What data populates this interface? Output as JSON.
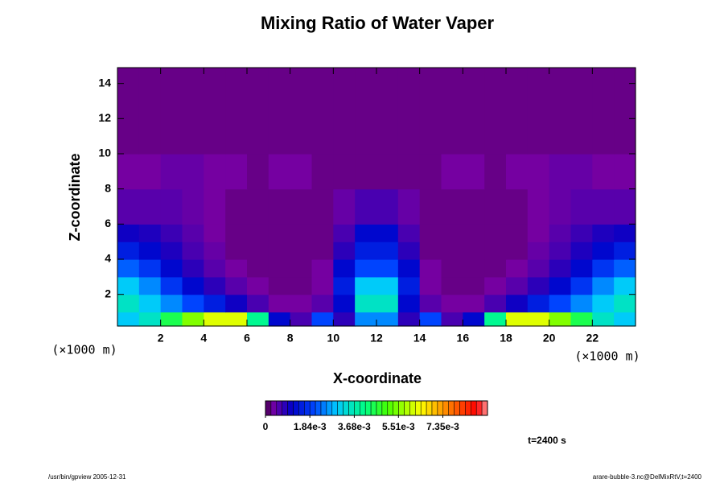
{
  "chart_data": {
    "type": "heatmap",
    "title": "Mixing Ratio of Water Vaper",
    "xlabel": "X-coordinate",
    "ylabel": "Z-coordinate",
    "x_unit": "(×1000 m)",
    "time_label": "t=2400 s",
    "footer_left": "/usr/bin/gpview 2005-12-31",
    "footer_right": "arare-bubble-3.nc@DelMixRtV,t=2400",
    "xlim": [
      0,
      24
    ],
    "ylim": [
      0.2,
      14.9
    ],
    "xticks": [
      2,
      4,
      6,
      8,
      10,
      12,
      14,
      16,
      18,
      20,
      22
    ],
    "yticks": [
      2,
      4,
      6,
      8,
      10,
      12,
      14
    ],
    "xbins": [
      0,
      1,
      2,
      3,
      4,
      5,
      6,
      7,
      8,
      9,
      10,
      11,
      12,
      13,
      14,
      15,
      16,
      17,
      18,
      19,
      20,
      21,
      22,
      23,
      24
    ],
    "ybins": [
      0.2,
      1,
      2,
      3,
      4,
      5,
      6,
      8,
      10,
      14.9
    ],
    "z": [
      [
        0.003,
        0.0035,
        0.0045,
        0.0055,
        0.0062,
        0.0062,
        0.004,
        0.0012,
        0.0006,
        0.002,
        0.0008,
        0.0025,
        0.0025,
        0.0008,
        0.002,
        0.0006,
        0.0012,
        0.004,
        0.0062,
        0.0062,
        0.0055,
        0.0045,
        0.0035,
        0.003
      ],
      [
        0.0035,
        0.003,
        0.0025,
        0.002,
        0.0015,
        0.001,
        0.0006,
        0.0003,
        0.0003,
        0.0005,
        0.0012,
        0.0035,
        0.0035,
        0.0012,
        0.0005,
        0.0003,
        0.0003,
        0.0006,
        0.001,
        0.0015,
        0.002,
        0.0025,
        0.003,
        0.0035
      ],
      [
        0.003,
        0.0025,
        0.0018,
        0.0012,
        0.0008,
        0.0005,
        0.0003,
        0.0002,
        0.0002,
        0.0003,
        0.0015,
        0.003,
        0.003,
        0.0015,
        0.0003,
        0.0002,
        0.0002,
        0.0003,
        0.0005,
        0.0008,
        0.0012,
        0.0018,
        0.0025,
        0.003
      ],
      [
        0.0022,
        0.0018,
        0.0012,
        0.0008,
        0.0005,
        0.0003,
        0.0002,
        0.0002,
        0.0002,
        0.0003,
        0.0012,
        0.002,
        0.002,
        0.0012,
        0.0003,
        0.0002,
        0.0002,
        0.0002,
        0.0003,
        0.0005,
        0.0008,
        0.0012,
        0.0018,
        0.0022
      ],
      [
        0.0015,
        0.0012,
        0.0009,
        0.0006,
        0.0004,
        0.0002,
        0.0002,
        0.0002,
        0.0002,
        0.0002,
        0.0008,
        0.0015,
        0.0015,
        0.0008,
        0.0002,
        0.0002,
        0.0002,
        0.0002,
        0.0002,
        0.0004,
        0.0006,
        0.0009,
        0.0012,
        0.0015
      ],
      [
        0.001,
        0.0009,
        0.0007,
        0.0005,
        0.0003,
        0.0002,
        0.0002,
        0.0002,
        0.0002,
        0.0002,
        0.0006,
        0.0012,
        0.0012,
        0.0006,
        0.0002,
        0.0002,
        0.0002,
        0.0002,
        0.0002,
        0.0003,
        0.0005,
        0.0007,
        0.0009,
        0.001
      ],
      [
        0.0005,
        0.0005,
        0.0005,
        0.0004,
        0.0003,
        0.0002,
        0.0002,
        0.0002,
        0.0002,
        0.0002,
        0.0004,
        0.0006,
        0.0006,
        0.0004,
        0.0002,
        0.0002,
        0.0002,
        0.0002,
        0.0002,
        0.0003,
        0.0004,
        0.0005,
        0.0005,
        0.0005
      ],
      [
        0.0003,
        0.0003,
        0.0004,
        0.0004,
        0.0003,
        0.0003,
        0.0002,
        0.0003,
        0.0003,
        0.0002,
        0.0002,
        0.0002,
        0.0002,
        0.0002,
        0.0002,
        0.0003,
        0.0003,
        0.0002,
        0.0003,
        0.0003,
        0.0004,
        0.0004,
        0.0003,
        0.0003
      ],
      [
        0.0002,
        0.0002,
        0.0002,
        0.0002,
        0.0002,
        0.0002,
        0.0002,
        0.0002,
        0.0002,
        0.0002,
        0.0002,
        0.0002,
        0.0002,
        0.0002,
        0.0002,
        0.0002,
        0.0002,
        0.0002,
        0.0002,
        0.0002,
        0.0002,
        0.0002,
        0.0002,
        0.0002
      ]
    ],
    "colorbar_lim": [
      0,
      0.0092
    ],
    "colorbar_ticks": [
      0,
      {
        "value": 0.00184,
        "label": "1.84e-3"
      },
      {
        "value": 0.00368,
        "label": "3.68e-3"
      },
      {
        "value": 0.00551,
        "label": "5.51e-3"
      },
      {
        "value": 0.00735,
        "label": "7.35e-3"
      }
    ]
  }
}
